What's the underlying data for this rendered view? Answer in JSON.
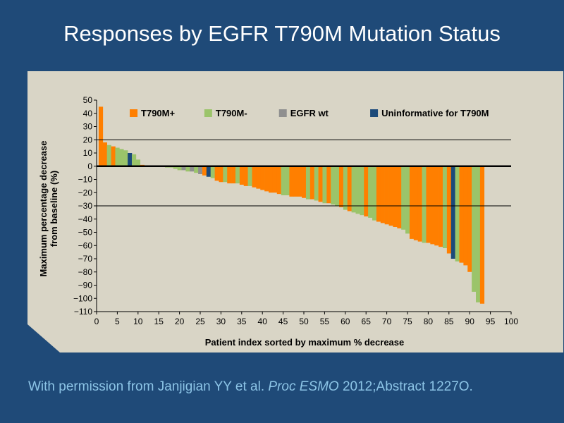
{
  "slide": {
    "title": "Responses by EGFR T790M Mutation Status",
    "citation_pre": "With permission from Janjigian YY et al. ",
    "citation_italic": "Proc ESMO",
    "citation_post": " 2012;Abstract 1227O."
  },
  "colors": {
    "background": "#1f4a78",
    "panel": "#d9d5c6",
    "T790M+": "#ff7f00",
    "T790M-": "#9bc46a",
    "EGFR wt": "#8f8f8f",
    "Uninformative for T790M": "#1c4a7a"
  },
  "chart_data": {
    "type": "bar",
    "xlabel": "Patient index sorted by maximum % decrease",
    "ylabel": "Maximum percentage decrease from baseline (%)",
    "xlim": [
      0,
      100
    ],
    "ylim": [
      -110,
      50
    ],
    "xticks": [
      0,
      5,
      10,
      15,
      20,
      25,
      30,
      35,
      40,
      45,
      50,
      55,
      60,
      65,
      70,
      75,
      80,
      85,
      90,
      95,
      100
    ],
    "yticks": [
      50,
      40,
      30,
      20,
      10,
      0,
      -10,
      -20,
      -30,
      -40,
      -50,
      -60,
      -70,
      -80,
      -90,
      -100,
      -110
    ],
    "reference_lines": [
      20,
      -30
    ],
    "grid": false,
    "legend": {
      "placement": "top",
      "entries": [
        "T790M+",
        "T790M-",
        "EGFR wt",
        "Uninformative for T790M"
      ]
    },
    "series_codes": {
      "P": "T790M+",
      "M": "T790M-",
      "W": "EGFR wt",
      "U": "Uninformative for T790M"
    },
    "values": [
      45,
      18,
      16,
      15,
      14,
      13,
      12,
      10,
      9,
      5,
      1,
      0,
      0,
      0,
      0,
      0,
      -1,
      -1,
      -2,
      -3,
      -3,
      -4,
      -4,
      -5,
      -6,
      -7,
      -8,
      -9,
      -11,
      -12,
      -12,
      -13,
      -13,
      -13,
      -14,
      -15,
      -15,
      -16,
      -17,
      -18,
      -19,
      -20,
      -20,
      -21,
      -22,
      -22,
      -23,
      -23,
      -23,
      -24,
      -25,
      -25,
      -26,
      -27,
      -28,
      -28,
      -29,
      -30,
      -31,
      -33,
      -34,
      -35,
      -36,
      -37,
      -38,
      -39,
      -41,
      -42,
      -43,
      -44,
      -45,
      -46,
      -47,
      -48,
      -51,
      -55,
      -56,
      -57,
      -58,
      -58,
      -59,
      -60,
      -61,
      -62,
      -66,
      -70,
      -72,
      -73,
      -75,
      -80,
      -95,
      -103,
      -104
    ],
    "groups": [
      "P",
      "P",
      "M",
      "P",
      "M",
      "M",
      "M",
      "U",
      "M",
      "M",
      "P",
      "M",
      "M",
      "M",
      "M",
      "M",
      "M",
      "M",
      "M",
      "M",
      "W",
      "M",
      "W",
      "M",
      "W",
      "P",
      "U",
      "M",
      "P",
      "P",
      "M",
      "P",
      "P",
      "M",
      "P",
      "P",
      "M",
      "P",
      "P",
      "P",
      "P",
      "P",
      "P",
      "P",
      "M",
      "M",
      "P",
      "P",
      "P",
      "P",
      "M",
      "P",
      "M",
      "P",
      "M",
      "P",
      "M",
      "M",
      "P",
      "M",
      "P",
      "M",
      "M",
      "M",
      "P",
      "M",
      "M",
      "P",
      "P",
      "P",
      "P",
      "P",
      "P",
      "M",
      "M",
      "P",
      "P",
      "P",
      "M",
      "P",
      "P",
      "P",
      "P",
      "M",
      "P",
      "U",
      "M",
      "P",
      "P",
      "P",
      "M",
      "M",
      "P"
    ]
  }
}
